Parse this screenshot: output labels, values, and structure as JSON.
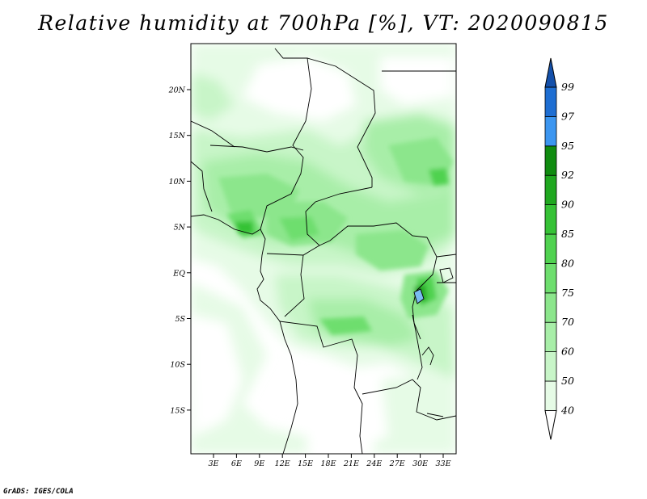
{
  "title": "Relative humidity at 700hPa [%], VT: 2020090815",
  "credit": "GrADS: IGES/COLA",
  "map": {
    "lon_labels": [
      "3E",
      "6E",
      "9E",
      "12E",
      "15E",
      "18E",
      "21E",
      "24E",
      "27E",
      "30E",
      "33E"
    ],
    "lat_labels": [
      "20N",
      "15N",
      "10N",
      "5N",
      "EQ",
      "5S",
      "10S",
      "15S"
    ]
  },
  "colorbar": {
    "levels": [
      "40",
      "50",
      "60",
      "70",
      "75",
      "80",
      "85",
      "90",
      "92",
      "95",
      "97",
      "99"
    ],
    "colors": {
      "below_40": "#ffffff",
      "40-50": "#e6fbe6",
      "50-60": "#c8f5c8",
      "60-70": "#a8eea8",
      "70-75": "#8ce68c",
      "75-80": "#6ede6e",
      "80-85": "#50d250",
      "85-90": "#36c236",
      "90-92": "#20a820",
      "92-95": "#108c10",
      "95-97": "#3c96f0",
      "97-99": "#1e6ed2",
      "above_99": "#1450aa"
    }
  }
}
